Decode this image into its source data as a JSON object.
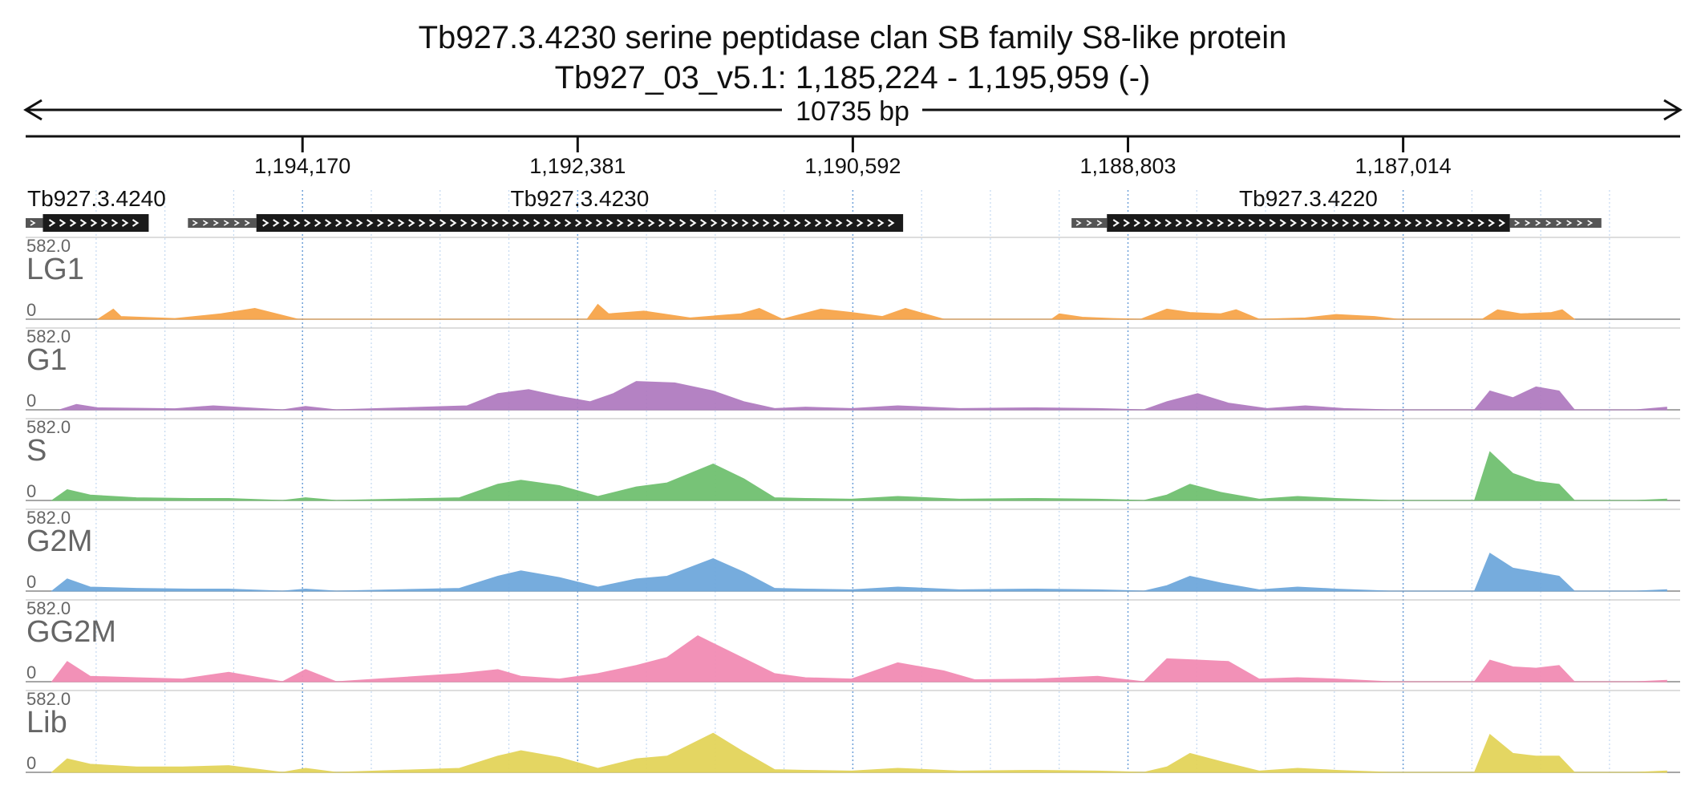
{
  "title": {
    "line1": "Tb927.3.4230  serine peptidase  clan SB  family S8-like protein",
    "line2": "Tb927_03_v5.1: 1,185,224 - 1,195,959 (-)"
  },
  "scale_label": "10735 bp",
  "chart_data": {
    "type": "area",
    "genomic_region": {
      "chromosome": "Tb927_03_v5.1",
      "start": 1185224,
      "end": 1195959,
      "strand": "-"
    },
    "x_axis": {
      "ticks": [
        1194170,
        1192381,
        1190592,
        1188803,
        1187014
      ],
      "tick_labels": [
        "1,194,170",
        "1,192,381",
        "1,190,592",
        "1,188,803",
        "1,187,014"
      ]
    },
    "ylim": [
      0,
      582.0
    ],
    "ymax_label": "582.0",
    "ymin_label": "0",
    "genes": [
      {
        "name": "Tb927.3.4240",
        "utr": [
          [
            1195970,
            1195858
          ]
        ],
        "cds": [
          [
            1195858,
            1195170
          ]
        ]
      },
      {
        "name": "Tb927.3.4230",
        "utr": [
          [
            1194915,
            1194470
          ]
        ],
        "cds": [
          [
            1194470,
            1190265
          ]
        ]
      },
      {
        "name": "Tb927.3.4220",
        "utr": [
          [
            1189170,
            1188940
          ],
          [
            1186320,
            1185725
          ]
        ],
        "cds": [
          [
            1188940,
            1186320
          ]
        ]
      }
    ],
    "series": [
      {
        "name": "LG1",
        "color": "#F7A54A",
        "points": [
          [
            1195500,
            0
          ],
          [
            1195400,
            75
          ],
          [
            1195350,
            20
          ],
          [
            1195000,
            5
          ],
          [
            1194700,
            40
          ],
          [
            1194480,
            80
          ],
          [
            1194200,
            0
          ],
          [
            1192320,
            0
          ],
          [
            1192250,
            110
          ],
          [
            1192180,
            40
          ],
          [
            1191950,
            60
          ],
          [
            1191650,
            10
          ],
          [
            1191320,
            40
          ],
          [
            1191200,
            80
          ],
          [
            1191050,
            0
          ],
          [
            1190800,
            75
          ],
          [
            1190600,
            50
          ],
          [
            1190400,
            20
          ],
          [
            1190250,
            80
          ],
          [
            1190000,
            0
          ],
          [
            1189300,
            0
          ],
          [
            1189250,
            40
          ],
          [
            1189100,
            15
          ],
          [
            1188900,
            5
          ],
          [
            1188720,
            0
          ],
          [
            1188550,
            75
          ],
          [
            1188400,
            50
          ],
          [
            1188200,
            40
          ],
          [
            1188100,
            70
          ],
          [
            1187950,
            0
          ],
          [
            1187650,
            10
          ],
          [
            1187450,
            35
          ],
          [
            1187200,
            20
          ],
          [
            1187050,
            0
          ],
          [
            1186500,
            0
          ],
          [
            1186400,
            70
          ],
          [
            1186250,
            40
          ],
          [
            1186050,
            50
          ],
          [
            1185980,
            70
          ],
          [
            1185900,
            0
          ]
        ]
      },
      {
        "name": "G1",
        "color": "#B07CC0",
        "points": [
          [
            1195750,
            0
          ],
          [
            1195640,
            40
          ],
          [
            1195500,
            15
          ],
          [
            1195000,
            8
          ],
          [
            1194750,
            30
          ],
          [
            1194300,
            0
          ],
          [
            1194150,
            25
          ],
          [
            1193950,
            0
          ],
          [
            1193100,
            30
          ],
          [
            1192900,
            120
          ],
          [
            1192700,
            150
          ],
          [
            1192500,
            100
          ],
          [
            1192300,
            60
          ],
          [
            1192150,
            120
          ],
          [
            1192000,
            210
          ],
          [
            1191750,
            200
          ],
          [
            1191500,
            140
          ],
          [
            1191300,
            60
          ],
          [
            1191100,
            10
          ],
          [
            1190900,
            20
          ],
          [
            1190600,
            10
          ],
          [
            1190300,
            30
          ],
          [
            1189900,
            10
          ],
          [
            1189400,
            15
          ],
          [
            1189000,
            10
          ],
          [
            1188700,
            0
          ],
          [
            1188550,
            60
          ],
          [
            1188350,
            120
          ],
          [
            1188150,
            50
          ],
          [
            1187900,
            10
          ],
          [
            1187650,
            30
          ],
          [
            1187400,
            10
          ],
          [
            1187100,
            0
          ],
          [
            1186550,
            0
          ],
          [
            1186450,
            140
          ],
          [
            1186300,
            90
          ],
          [
            1186150,
            170
          ],
          [
            1186000,
            140
          ],
          [
            1185900,
            0
          ],
          [
            1185500,
            0
          ],
          [
            1185300,
            20
          ]
        ]
      },
      {
        "name": "S",
        "color": "#70C070",
        "points": [
          [
            1195800,
            0
          ],
          [
            1195700,
            80
          ],
          [
            1195550,
            40
          ],
          [
            1195250,
            20
          ],
          [
            1194900,
            15
          ],
          [
            1194650,
            15
          ],
          [
            1194300,
            0
          ],
          [
            1194150,
            20
          ],
          [
            1193950,
            0
          ],
          [
            1193150,
            20
          ],
          [
            1192900,
            120
          ],
          [
            1192750,
            150
          ],
          [
            1192500,
            110
          ],
          [
            1192250,
            30
          ],
          [
            1192000,
            100
          ],
          [
            1191800,
            130
          ],
          [
            1191500,
            270
          ],
          [
            1191300,
            160
          ],
          [
            1191100,
            20
          ],
          [
            1190900,
            15
          ],
          [
            1190600,
            10
          ],
          [
            1190300,
            30
          ],
          [
            1189900,
            10
          ],
          [
            1189400,
            15
          ],
          [
            1189000,
            10
          ],
          [
            1188700,
            0
          ],
          [
            1188550,
            40
          ],
          [
            1188400,
            120
          ],
          [
            1188200,
            60
          ],
          [
            1187950,
            10
          ],
          [
            1187700,
            30
          ],
          [
            1187450,
            15
          ],
          [
            1187100,
            0
          ],
          [
            1186550,
            0
          ],
          [
            1186450,
            360
          ],
          [
            1186300,
            200
          ],
          [
            1186150,
            140
          ],
          [
            1186000,
            120
          ],
          [
            1185900,
            0
          ],
          [
            1185500,
            0
          ],
          [
            1185300,
            10
          ]
        ]
      },
      {
        "name": "G2M",
        "color": "#6FA8DC",
        "points": [
          [
            1195800,
            0
          ],
          [
            1195700,
            90
          ],
          [
            1195550,
            30
          ],
          [
            1195250,
            20
          ],
          [
            1194900,
            15
          ],
          [
            1194650,
            15
          ],
          [
            1194300,
            0
          ],
          [
            1194150,
            15
          ],
          [
            1193950,
            0
          ],
          [
            1193150,
            20
          ],
          [
            1192900,
            110
          ],
          [
            1192750,
            150
          ],
          [
            1192500,
            100
          ],
          [
            1192250,
            30
          ],
          [
            1192000,
            90
          ],
          [
            1191800,
            110
          ],
          [
            1191500,
            240
          ],
          [
            1191300,
            140
          ],
          [
            1191100,
            20
          ],
          [
            1190900,
            15
          ],
          [
            1190600,
            10
          ],
          [
            1190300,
            30
          ],
          [
            1189900,
            10
          ],
          [
            1189400,
            15
          ],
          [
            1189000,
            10
          ],
          [
            1188700,
            0
          ],
          [
            1188550,
            40
          ],
          [
            1188400,
            110
          ],
          [
            1188200,
            60
          ],
          [
            1187950,
            10
          ],
          [
            1187700,
            30
          ],
          [
            1187450,
            15
          ],
          [
            1187100,
            0
          ],
          [
            1186550,
            0
          ],
          [
            1186450,
            280
          ],
          [
            1186300,
            170
          ],
          [
            1186150,
            140
          ],
          [
            1186000,
            110
          ],
          [
            1185900,
            0
          ],
          [
            1185500,
            0
          ],
          [
            1185300,
            10
          ]
        ]
      },
      {
        "name": "GG2M",
        "color": "#F28CB4",
        "points": [
          [
            1195800,
            0
          ],
          [
            1195700,
            150
          ],
          [
            1195550,
            40
          ],
          [
            1195250,
            30
          ],
          [
            1194950,
            20
          ],
          [
            1194650,
            70
          ],
          [
            1194300,
            0
          ],
          [
            1194150,
            90
          ],
          [
            1193950,
            0
          ],
          [
            1193150,
            60
          ],
          [
            1192900,
            90
          ],
          [
            1192750,
            40
          ],
          [
            1192500,
            20
          ],
          [
            1192250,
            60
          ],
          [
            1192000,
            120
          ],
          [
            1191800,
            180
          ],
          [
            1191600,
            340
          ],
          [
            1191350,
            200
          ],
          [
            1191100,
            60
          ],
          [
            1190900,
            30
          ],
          [
            1190600,
            20
          ],
          [
            1190300,
            140
          ],
          [
            1190000,
            80
          ],
          [
            1189800,
            15
          ],
          [
            1189400,
            20
          ],
          [
            1189000,
            40
          ],
          [
            1188700,
            0
          ],
          [
            1188550,
            170
          ],
          [
            1188350,
            160
          ],
          [
            1188150,
            150
          ],
          [
            1187950,
            20
          ],
          [
            1187700,
            30
          ],
          [
            1187450,
            20
          ],
          [
            1187100,
            0
          ],
          [
            1186550,
            0
          ],
          [
            1186450,
            160
          ],
          [
            1186300,
            110
          ],
          [
            1186150,
            100
          ],
          [
            1186000,
            120
          ],
          [
            1185900,
            0
          ],
          [
            1185500,
            0
          ],
          [
            1185300,
            10
          ]
        ]
      },
      {
        "name": "Lib",
        "color": "#E3D45A",
        "points": [
          [
            1195800,
            0
          ],
          [
            1195700,
            100
          ],
          [
            1195550,
            60
          ],
          [
            1195250,
            40
          ],
          [
            1194950,
            40
          ],
          [
            1194650,
            50
          ],
          [
            1194300,
            0
          ],
          [
            1194150,
            30
          ],
          [
            1193950,
            0
          ],
          [
            1193150,
            30
          ],
          [
            1192900,
            120
          ],
          [
            1192750,
            160
          ],
          [
            1192500,
            110
          ],
          [
            1192250,
            30
          ],
          [
            1192000,
            100
          ],
          [
            1191800,
            120
          ],
          [
            1191500,
            290
          ],
          [
            1191300,
            150
          ],
          [
            1191100,
            20
          ],
          [
            1190900,
            15
          ],
          [
            1190600,
            10
          ],
          [
            1190300,
            30
          ],
          [
            1189900,
            10
          ],
          [
            1189400,
            15
          ],
          [
            1189000,
            10
          ],
          [
            1188700,
            0
          ],
          [
            1188550,
            40
          ],
          [
            1188400,
            140
          ],
          [
            1188200,
            80
          ],
          [
            1187950,
            10
          ],
          [
            1187700,
            30
          ],
          [
            1187450,
            15
          ],
          [
            1187100,
            0
          ],
          [
            1186550,
            0
          ],
          [
            1186450,
            280
          ],
          [
            1186300,
            140
          ],
          [
            1186150,
            120
          ],
          [
            1186000,
            120
          ],
          [
            1185900,
            0
          ],
          [
            1185500,
            0
          ],
          [
            1185300,
            10
          ]
        ]
      }
    ]
  }
}
